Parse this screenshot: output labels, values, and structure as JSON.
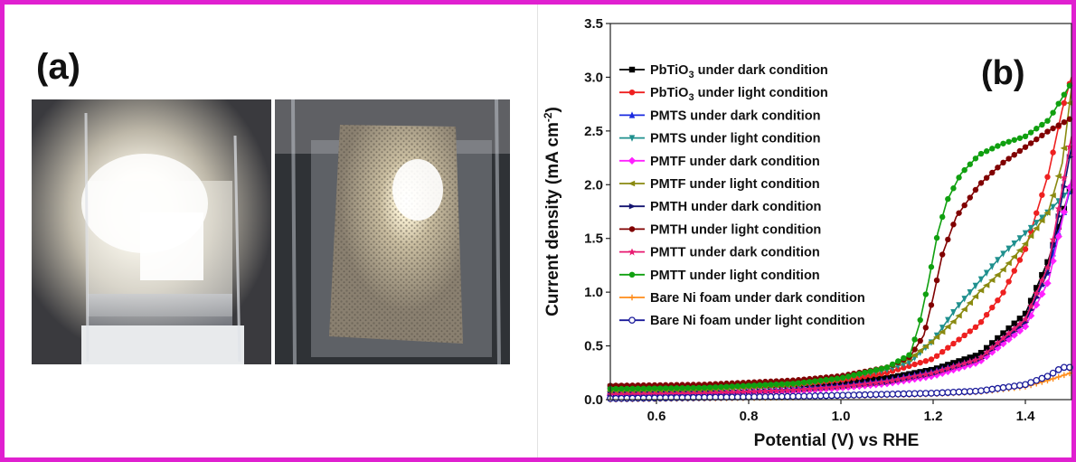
{
  "figure": {
    "panel_a_label": "(a)",
    "panel_b_label": "(b)"
  },
  "photos": [
    {
      "subject": "beaker-with-lamp-light"
    },
    {
      "subject": "ni-foam-electrode-in-beaker"
    }
  ],
  "colors": {
    "frame": "#e020d0"
  },
  "chart_data": {
    "type": "line",
    "title": "",
    "xlabel": "Potential (V) vs RHE",
    "ylabel_main": "Current density (mA cm",
    "ylabel_sup": "-2",
    "ylabel_close": ")",
    "xlim": [
      0.5,
      1.5
    ],
    "ylim": [
      0,
      3.5
    ],
    "xticks": [
      0.6,
      0.8,
      1.0,
      1.2,
      1.4
    ],
    "xtick_labels": [
      "0.6",
      "0.8",
      "1.0",
      "1.2",
      "1.4"
    ],
    "yticks": [
      0,
      0.5,
      1.0,
      1.5,
      2.0,
      2.5,
      3.0,
      3.5
    ],
    "ytick_labels": [
      "0.0",
      "0.5",
      "1.0",
      "1.5",
      "2.0",
      "2.5",
      "3.0",
      "3.5"
    ],
    "grid": false,
    "legend_position": "top-left",
    "series": [
      {
        "label_main": "PbTiO",
        "label_sub": "3",
        "label_rest": " under dark condition",
        "color": "#000000",
        "marker": "square",
        "points": [
          [
            0.5,
            0.12
          ],
          [
            0.7,
            0.12
          ],
          [
            0.9,
            0.14
          ],
          [
            1.0,
            0.16
          ],
          [
            1.1,
            0.2
          ],
          [
            1.2,
            0.28
          ],
          [
            1.3,
            0.42
          ],
          [
            1.4,
            0.8
          ],
          [
            1.45,
            1.3
          ],
          [
            1.5,
            2.0
          ]
        ]
      },
      {
        "label_main": "PbTiO",
        "label_sub": "3",
        "label_rest": " under light condition",
        "color": "#ee2020",
        "marker": "circle",
        "points": [
          [
            0.5,
            0.1
          ],
          [
            0.7,
            0.11
          ],
          [
            0.9,
            0.14
          ],
          [
            1.0,
            0.18
          ],
          [
            1.1,
            0.25
          ],
          [
            1.2,
            0.38
          ],
          [
            1.3,
            0.7
          ],
          [
            1.35,
            0.98
          ],
          [
            1.4,
            1.4
          ],
          [
            1.45,
            2.1
          ],
          [
            1.48,
            2.7
          ],
          [
            1.5,
            3.0
          ]
        ]
      },
      {
        "label_main": "PMTS under dark condition",
        "label_sub": "",
        "label_rest": "",
        "color": "#1a2be0",
        "marker": "triangle-up",
        "points": [
          [
            0.5,
            0.05
          ],
          [
            0.7,
            0.06
          ],
          [
            0.9,
            0.1
          ],
          [
            1.0,
            0.13
          ],
          [
            1.1,
            0.18
          ],
          [
            1.2,
            0.26
          ],
          [
            1.3,
            0.38
          ],
          [
            1.4,
            0.75
          ],
          [
            1.45,
            1.2
          ],
          [
            1.5,
            2.0
          ]
        ]
      },
      {
        "label_main": "PMTS under light condition",
        "label_sub": "",
        "label_rest": "",
        "color": "#20908e",
        "marker": "triangle-down",
        "points": [
          [
            0.5,
            0.09
          ],
          [
            0.7,
            0.1
          ],
          [
            0.9,
            0.14
          ],
          [
            1.0,
            0.2
          ],
          [
            1.1,
            0.28
          ],
          [
            1.15,
            0.35
          ],
          [
            1.2,
            0.55
          ],
          [
            1.25,
            0.85
          ],
          [
            1.3,
            1.1
          ],
          [
            1.35,
            1.35
          ],
          [
            1.4,
            1.55
          ],
          [
            1.45,
            1.75
          ],
          [
            1.5,
            1.97
          ]
        ]
      },
      {
        "label_main": "PMTF under dark condition",
        "label_sub": "",
        "label_rest": "",
        "color": "#ff20ff",
        "marker": "diamond",
        "points": [
          [
            0.5,
            0.04
          ],
          [
            0.7,
            0.05
          ],
          [
            0.9,
            0.08
          ],
          [
            1.0,
            0.11
          ],
          [
            1.1,
            0.15
          ],
          [
            1.2,
            0.22
          ],
          [
            1.3,
            0.35
          ],
          [
            1.4,
            0.68
          ],
          [
            1.45,
            1.1
          ],
          [
            1.5,
            2.05
          ]
        ]
      },
      {
        "label_main": "PMTF under light condition",
        "label_sub": "",
        "label_rest": "",
        "color": "#8a8a10",
        "marker": "triangle-left",
        "points": [
          [
            0.5,
            0.08
          ],
          [
            0.7,
            0.09
          ],
          [
            0.9,
            0.14
          ],
          [
            1.0,
            0.2
          ],
          [
            1.1,
            0.3
          ],
          [
            1.15,
            0.38
          ],
          [
            1.2,
            0.55
          ],
          [
            1.25,
            0.75
          ],
          [
            1.3,
            1.0
          ],
          [
            1.35,
            1.2
          ],
          [
            1.4,
            1.45
          ],
          [
            1.45,
            1.75
          ],
          [
            1.48,
            2.2
          ],
          [
            1.5,
            2.9
          ]
        ]
      },
      {
        "label_main": "PMTH under dark condition",
        "label_sub": "",
        "label_rest": "",
        "color": "#141470",
        "marker": "triangle-right",
        "points": [
          [
            0.5,
            0.05
          ],
          [
            0.7,
            0.06
          ],
          [
            0.9,
            0.09
          ],
          [
            1.0,
            0.12
          ],
          [
            1.1,
            0.16
          ],
          [
            1.2,
            0.24
          ],
          [
            1.3,
            0.37
          ],
          [
            1.4,
            0.72
          ],
          [
            1.45,
            1.2
          ],
          [
            1.5,
            2.35
          ]
        ]
      },
      {
        "label_main": "PMTH under light condition",
        "label_sub": "",
        "label_rest": "",
        "color": "#800000",
        "marker": "circle",
        "points": [
          [
            0.5,
            0.13
          ],
          [
            0.7,
            0.14
          ],
          [
            0.9,
            0.18
          ],
          [
            1.0,
            0.22
          ],
          [
            1.1,
            0.3
          ],
          [
            1.15,
            0.4
          ],
          [
            1.18,
            0.6
          ],
          [
            1.2,
            0.95
          ],
          [
            1.22,
            1.35
          ],
          [
            1.25,
            1.7
          ],
          [
            1.3,
            2.0
          ],
          [
            1.35,
            2.2
          ],
          [
            1.4,
            2.35
          ],
          [
            1.45,
            2.5
          ],
          [
            1.5,
            2.62
          ]
        ]
      },
      {
        "label_main": "PMTT under dark condition",
        "label_sub": "",
        "label_rest": "",
        "color": "#e81a70",
        "marker": "star",
        "points": [
          [
            0.5,
            0.05
          ],
          [
            0.7,
            0.06
          ],
          [
            0.9,
            0.09
          ],
          [
            1.0,
            0.12
          ],
          [
            1.1,
            0.17
          ],
          [
            1.2,
            0.25
          ],
          [
            1.3,
            0.38
          ],
          [
            1.4,
            0.75
          ],
          [
            1.45,
            1.25
          ],
          [
            1.5,
            2.45
          ]
        ]
      },
      {
        "label_main": "PMTT under light condition",
        "label_sub": "",
        "label_rest": "",
        "color": "#10a010",
        "marker": "circle",
        "points": [
          [
            0.5,
            0.1
          ],
          [
            0.7,
            0.11
          ],
          [
            0.9,
            0.15
          ],
          [
            1.0,
            0.2
          ],
          [
            1.1,
            0.3
          ],
          [
            1.15,
            0.42
          ],
          [
            1.17,
            0.7
          ],
          [
            1.19,
            1.1
          ],
          [
            1.21,
            1.55
          ],
          [
            1.23,
            1.85
          ],
          [
            1.26,
            2.1
          ],
          [
            1.3,
            2.28
          ],
          [
            1.35,
            2.38
          ],
          [
            1.4,
            2.45
          ],
          [
            1.45,
            2.6
          ],
          [
            1.5,
            2.95
          ]
        ]
      },
      {
        "label_main": "Bare Ni foam under dark condition",
        "label_sub": "",
        "label_rest": "",
        "color": "#ff8c1a",
        "marker": "plus",
        "points": [
          [
            0.5,
            0.0
          ],
          [
            0.7,
            0.01
          ],
          [
            0.9,
            0.02
          ],
          [
            1.0,
            0.03
          ],
          [
            1.1,
            0.04
          ],
          [
            1.2,
            0.05
          ],
          [
            1.3,
            0.07
          ],
          [
            1.4,
            0.12
          ],
          [
            1.45,
            0.18
          ],
          [
            1.5,
            0.25
          ]
        ]
      },
      {
        "label_main": "Bare Ni foam under light condition",
        "label_sub": "",
        "label_rest": "",
        "color": "#1a1a9a",
        "marker": "open-circle",
        "points": [
          [
            0.5,
            0.01
          ],
          [
            0.7,
            0.02
          ],
          [
            0.9,
            0.03
          ],
          [
            1.0,
            0.04
          ],
          [
            1.1,
            0.05
          ],
          [
            1.2,
            0.06
          ],
          [
            1.3,
            0.08
          ],
          [
            1.4,
            0.14
          ],
          [
            1.45,
            0.22
          ],
          [
            1.48,
            0.3
          ],
          [
            1.5,
            0.3
          ]
        ]
      }
    ]
  }
}
